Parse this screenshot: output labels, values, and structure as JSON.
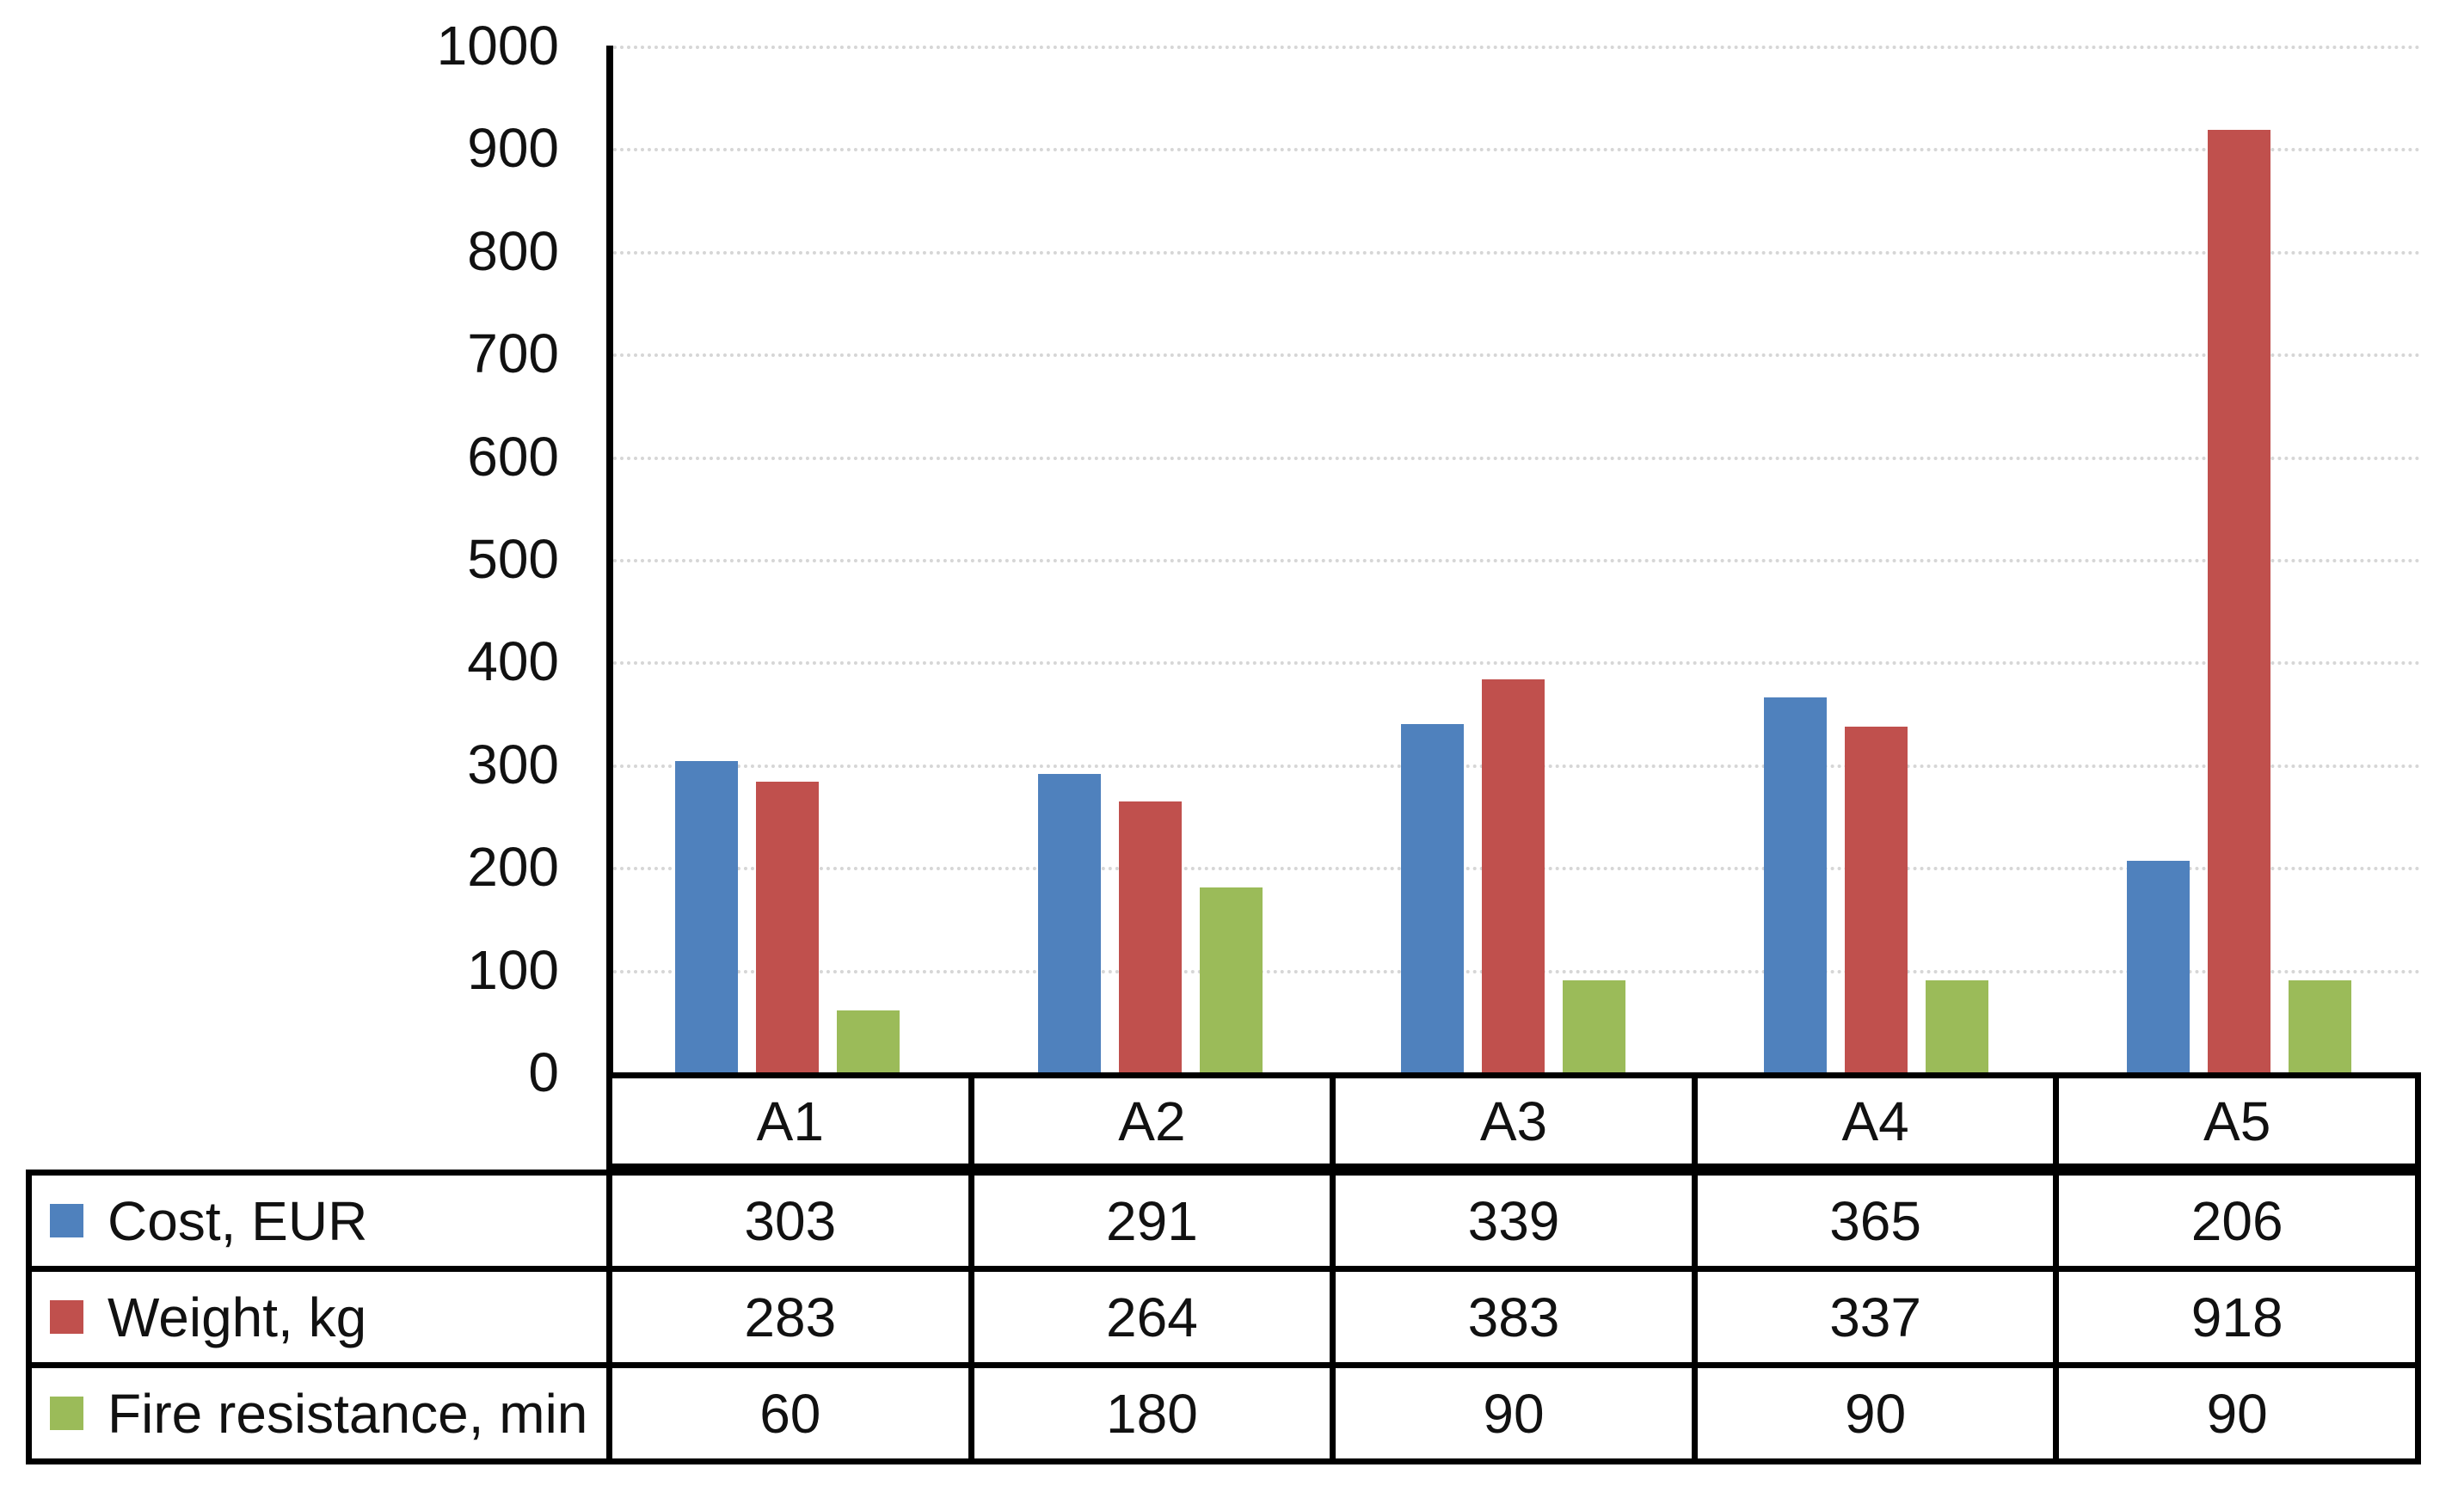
{
  "chart_data": {
    "type": "bar",
    "title": "",
    "xlabel": "",
    "ylabel": "",
    "categories": [
      "A1",
      "A2",
      "A3",
      "A4",
      "A5"
    ],
    "series": [
      {
        "name": "Cost, EUR",
        "color": "#4F81BD",
        "values": [
          303,
          291,
          339,
          365,
          206
        ]
      },
      {
        "name": "Weight, kg",
        "color": "#C0504D",
        "values": [
          283,
          264,
          383,
          337,
          918
        ]
      },
      {
        "name": "Fire resistance, min",
        "color": "#9BBB59",
        "values": [
          60,
          180,
          90,
          90,
          90
        ]
      }
    ],
    "ylim": [
      0,
      1000
    ],
    "yticks": [
      0,
      100,
      200,
      300,
      400,
      500,
      600,
      700,
      800,
      900,
      1000
    ],
    "grid": true,
    "gridline_color": "#d6d6d6",
    "axis_color": "#000000",
    "legend_position": "data-table-left",
    "data_table_shown": true
  }
}
